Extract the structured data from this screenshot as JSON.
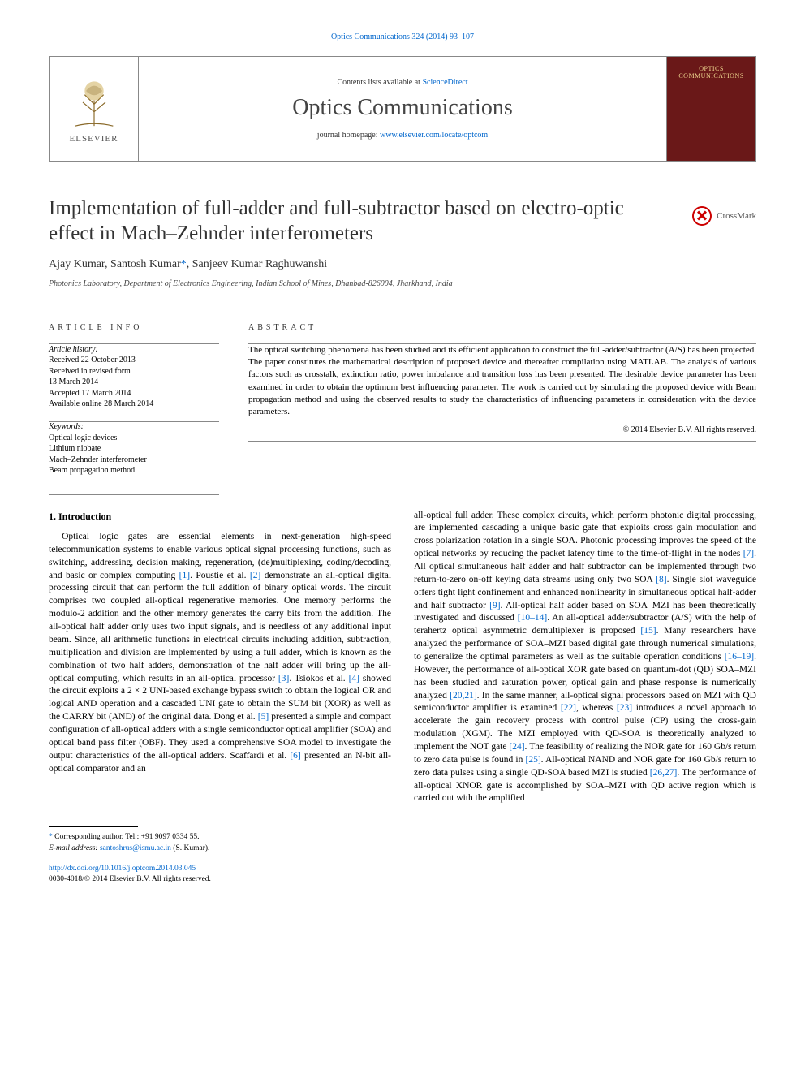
{
  "topCitation": {
    "prefix": "",
    "linkText": "Optics Communications 324 (2014) 93–107"
  },
  "header": {
    "contentsPrefix": "Contents lists available at ",
    "contentsLink": "ScienceDirect",
    "journalName": "Optics Communications",
    "homepagePrefix": "journal homepage: ",
    "homepageLink": "www.elsevier.com/locate/optcom",
    "publisher": "ELSEVIER",
    "coverTitle": "OPTICS COMMUNICATIONS"
  },
  "crossmark": {
    "label": "CrossMark"
  },
  "article": {
    "title": "Implementation of full-adder and full-subtractor based on electro-optic effect in Mach–Zehnder interferometers",
    "authors": "Ajay Kumar, Santosh Kumar",
    "correspondingMark": "*",
    "authorsTail": ", Sanjeev Kumar Raghuwanshi",
    "affiliation": "Photonics Laboratory, Department of Electronics Engineering, Indian School of Mines, Dhanbad-826004, Jharkhand, India"
  },
  "info": {
    "label": "ARTICLE INFO",
    "historyLabel": "Article history:",
    "history": [
      "Received 22 October 2013",
      "Received in revised form",
      "13 March 2014",
      "Accepted 17 March 2014",
      "Available online 28 March 2014"
    ],
    "keywordsLabel": "Keywords:",
    "keywords": [
      "Optical logic devices",
      "Lithium niobate",
      "Mach–Zehnder interferometer",
      "Beam propagation method"
    ]
  },
  "abstract": {
    "label": "ABSTRACT",
    "text": "The optical switching phenomena has been studied and its efficient application to construct the full-adder/subtractor (A/S) has been projected. The paper constitutes the mathematical description of proposed device and thereafter compilation using MATLAB. The analysis of various factors such as crosstalk, extinction ratio, power imbalance and transition loss has been presented. The desirable device parameter has been examined in order to obtain the optimum best influencing parameter. The work is carried out by simulating the proposed device with Beam propagation method and using the observed results to study the characteristics of influencing parameters in consideration with the device parameters.",
    "copyright": "© 2014 Elsevier B.V. All rights reserved."
  },
  "body": {
    "heading": "1.  Introduction",
    "col1": "Optical logic gates are essential elements in next-generation high-speed telecommunication systems to enable various optical signal processing functions, such as switching, addressing, decision making, regeneration, (de)multiplexing, coding/decoding, and basic or complex computing [1]. Poustie et al. [2] demonstrate an all-optical digital processing circuit that can perform the full addition of binary optical words. The circuit comprises two coupled all-optical regenerative memories. One memory performs the modulo-2 addition and the other memory generates the carry bits from the addition. The all-optical half adder only uses two input signals, and is needless of any additional input beam. Since, all arithmetic functions in electrical circuits including addition, subtraction, multiplication and division are implemented by using a full adder, which is known as the combination of two half adders, demonstration of the half adder will bring up the all-optical computing, which results in an all-optical processor [3]. Tsiokos et al. [4] showed the circuit exploits a 2 × 2 UNI-based exchange bypass switch to obtain the logical OR and logical AND operation and a cascaded UNI gate to obtain the SUM bit (XOR) as well as the CARRY bit (AND) of the original data. Dong et al. [5] presented a simple and compact configuration of all-optical adders with a single semiconductor optical amplifier (SOA) and optical band pass filter (OBF). They used a comprehensive SOA model to investigate the output characteristics of the all-optical adders. Scaffardi et al. [6] presented an N-bit all-optical comparator and an",
    "col2": "all-optical full adder. These complex circuits, which perform photonic digital processing, are implemented cascading a unique basic gate that exploits cross gain modulation and cross polarization rotation in a single SOA. Photonic processing improves the speed of the optical networks by reducing the packet latency time to the time-of-flight in the nodes [7]. All optical simultaneous half adder and half subtractor can be implemented through two return-to-zero on-off keying data streams using only two SOA [8]. Single slot waveguide offers tight light confinement and enhanced nonlinearity in simultaneous optical half-adder and half subtractor [9]. All-optical half adder based on SOA–MZI has been theoretically investigated and discussed [10–14]. An all-optical adder/subtractor (A/S) with the help of terahertz optical asymmetric demultiplexer is proposed [15]. Many researchers have analyzed the performance of SOA–MZI based digital gate through numerical simulations, to generalize the optimal parameters as well as the suitable operation conditions [16–19]. However, the performance of all-optical XOR gate based on quantum-dot (QD) SOA–MZI has been studied and saturation power, optical gain and phase response is numerically analyzed [20,21]. In the same manner, all-optical signal processors based on MZI with QD semiconductor amplifier is examined [22], whereas [23] introduces a novel approach to accelerate the gain recovery process with control pulse (CP) using the cross-gain modulation (XGM). The MZI employed with QD-SOA is theoretically analyzed to implement the NOT gate [24]. The feasibility of realizing the NOR gate for 160 Gb/s return to zero data pulse is found in [25]. All-optical NAND and NOR gate for 160 Gb/s return to zero data pulses using a single QD-SOA based MZI is studied [26,27]. The performance of all-optical XNOR gate is accomplished by SOA–MZI with QD active region which is carried out with the amplified",
    "refs": [
      "[1]",
      "[2]",
      "[3]",
      "[4]",
      "[5]",
      "[6]",
      "[7]",
      "[8]",
      "[9]",
      "[10–14]",
      "[15]",
      "[16–19]",
      "[20,21]",
      "[22]",
      "[23]",
      "[24]",
      "[25]",
      "[26,27]"
    ]
  },
  "footer": {
    "correspNote": "Corresponding author. Tel.: +91 9097 0334 55.",
    "emailLabel": "E-mail address: ",
    "email": "santoshrus@ismu.ac.in",
    "emailTail": " (S. Kumar).",
    "doi": "http://dx.doi.org/10.1016/j.optcom.2014.03.045",
    "issn": "0030-4018/© 2014 Elsevier B.V. All rights reserved."
  },
  "colors": {
    "link": "#0066cc",
    "coverBg": "#6a1818",
    "coverFg": "#f0d890",
    "rule": "#888888"
  }
}
